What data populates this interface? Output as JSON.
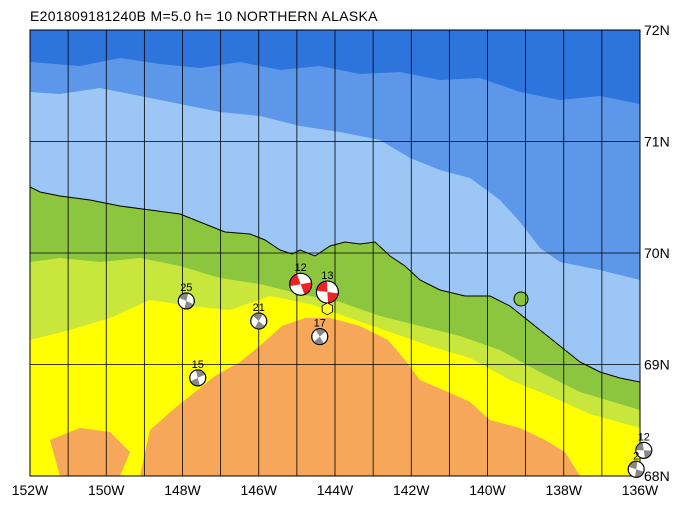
{
  "title": "E201809181240B M=5.0 h= 10 NORTHERN ALASKA",
  "longitude_ticks": [
    "152W",
    "150W",
    "148W",
    "146W",
    "144W",
    "142W",
    "140W",
    "138W",
    "136W"
  ],
  "latitude_ticks": [
    "72N",
    "71N",
    "70N",
    "69N",
    "68N"
  ],
  "events": [
    {
      "label": "12",
      "lon": -144.9,
      "lat": 69.72,
      "style": "red",
      "large": true
    },
    {
      "label": "13",
      "lon": -144.2,
      "lat": 69.65,
      "style": "red",
      "large": true
    },
    {
      "label": "25",
      "lon": -147.9,
      "lat": 69.57,
      "style": "gray",
      "large": false
    },
    {
      "label": "21",
      "lon": -146.0,
      "lat": 69.39,
      "style": "gray",
      "large": false
    },
    {
      "label": "17",
      "lon": -144.4,
      "lat": 69.25,
      "style": "gray",
      "large": false
    },
    {
      "label": "15",
      "lon": -147.6,
      "lat": 68.88,
      "style": "gray",
      "large": false
    },
    {
      "label": "12",
      "lon": -135.9,
      "lat": 68.23,
      "style": "gray",
      "large": false
    },
    {
      "label": "2",
      "lon": -136.1,
      "lat": 68.06,
      "style": "gray",
      "large": false
    }
  ],
  "epicenter": {
    "lon": -144.2,
    "lat": 69.5
  },
  "colors": {
    "deep_ocean": "#2e74dd",
    "mid_ocean": "#5c97ea",
    "shelf": "#9cc6f5",
    "lowland": "#8cc63f",
    "foothills": "#c8e63c",
    "upland": "#ffff00",
    "mountain": "#f6a75a",
    "beachball_red": "#ee2222",
    "beachball_gray": "#888888",
    "epicenter": "#ffff33"
  }
}
